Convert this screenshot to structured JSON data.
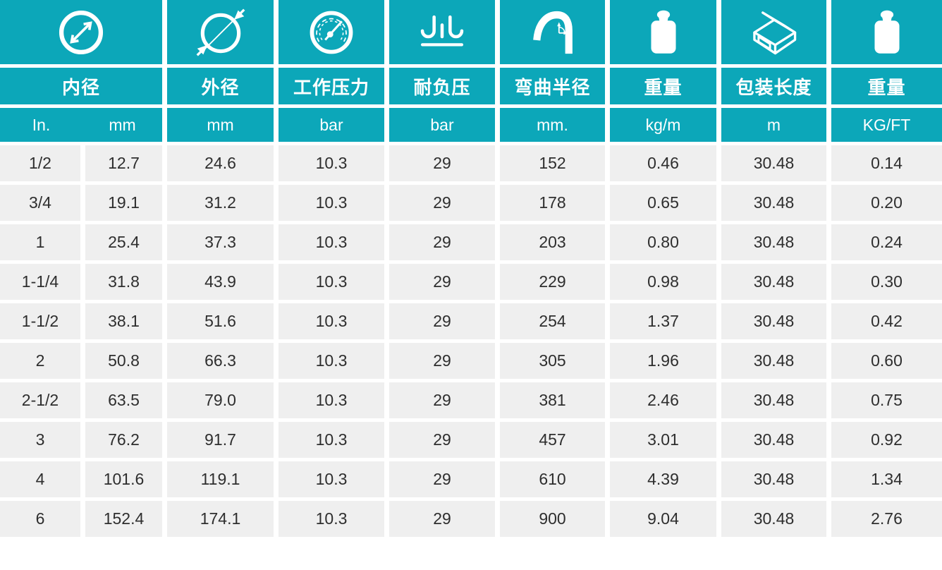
{
  "theme": {
    "teal": "#0ca7b9",
    "row_background": "#efefef",
    "header_text_color": "#ffffff",
    "data_text_color": "#2e2e2e"
  },
  "table": {
    "columns": [
      {
        "icon": "inner-diameter-icon",
        "header": "内径",
        "units": [
          "In.",
          "mm"
        ]
      },
      {
        "icon": "outer-diameter-icon",
        "header": "外径",
        "unit": "mm"
      },
      {
        "icon": "working-pressure-icon",
        "header": "工作压力",
        "unit": "bar"
      },
      {
        "icon": "negative-pressure-icon",
        "header": "耐负压",
        "unit": "bar"
      },
      {
        "icon": "bend-radius-icon",
        "header": "弯曲半径",
        "unit": "mm."
      },
      {
        "icon": "weight-icon",
        "header": "重量",
        "unit": "kg/m"
      },
      {
        "icon": "package-length-icon",
        "header": "包装长度",
        "unit": "m"
      },
      {
        "icon": "weight-icon",
        "header": "重量",
        "unit": "KG/FT"
      }
    ],
    "rows": [
      [
        "1/2",
        "12.7",
        "24.6",
        "10.3",
        "29",
        "152",
        "0.46",
        "30.48",
        "0.14"
      ],
      [
        "3/4",
        "19.1",
        "31.2",
        "10.3",
        "29",
        "178",
        "0.65",
        "30.48",
        "0.20"
      ],
      [
        "1",
        "25.4",
        "37.3",
        "10.3",
        "29",
        "203",
        "0.80",
        "30.48",
        "0.24"
      ],
      [
        "1-1/4",
        "31.8",
        "43.9",
        "10.3",
        "29",
        "229",
        "0.98",
        "30.48",
        "0.30"
      ],
      [
        "1-1/2",
        "38.1",
        "51.6",
        "10.3",
        "29",
        "254",
        "1.37",
        "30.48",
        "0.42"
      ],
      [
        "2",
        "50.8",
        "66.3",
        "10.3",
        "29",
        "305",
        "1.96",
        "30.48",
        "0.60"
      ],
      [
        "2-1/2",
        "63.5",
        "79.0",
        "10.3",
        "29",
        "381",
        "2.46",
        "30.48",
        "0.75"
      ],
      [
        "3",
        "76.2",
        "91.7",
        "10.3",
        "29",
        "457",
        "3.01",
        "30.48",
        "0.92"
      ],
      [
        "4",
        "101.6",
        "119.1",
        "10.3",
        "29",
        "610",
        "4.39",
        "30.48",
        "1.34"
      ],
      [
        "6",
        "152.4",
        "174.1",
        "10.3",
        "29",
        "900",
        "9.04",
        "30.48",
        "2.76"
      ]
    ]
  }
}
